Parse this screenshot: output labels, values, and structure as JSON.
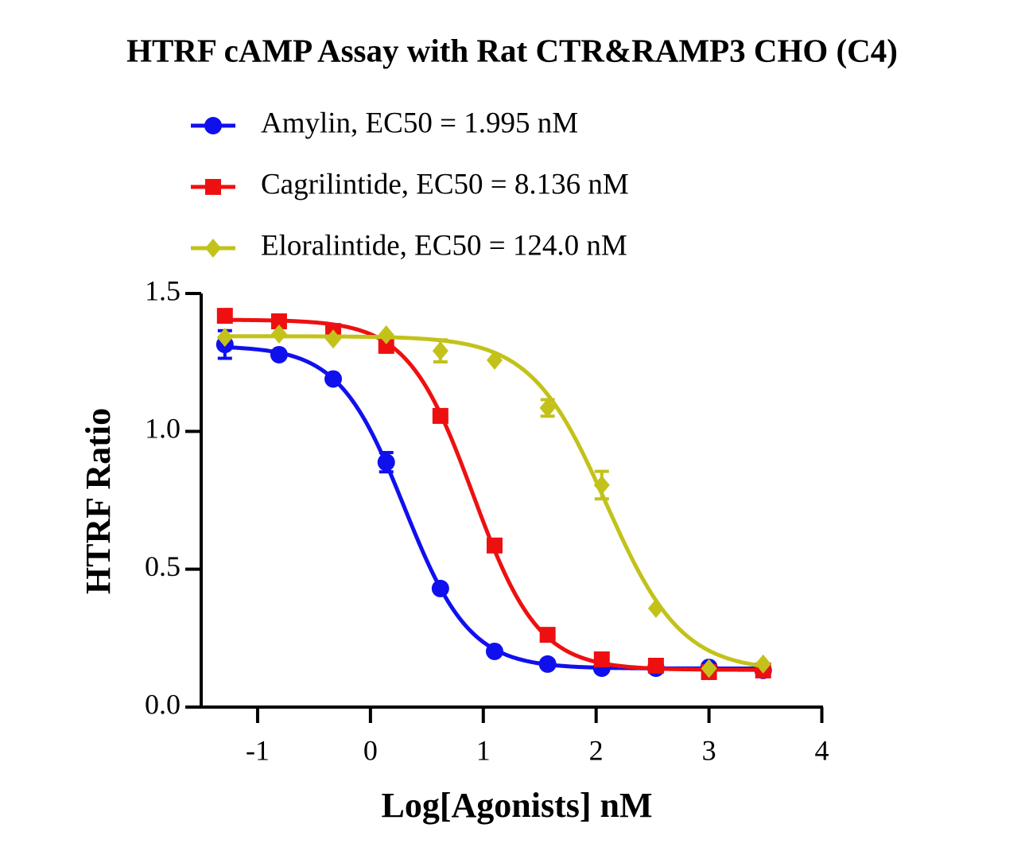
{
  "chart_data": {
    "type": "dose-response",
    "title": "HTRF cAMP Assay with Rat CTR&RAMP3 CHO (C4)",
    "x_label": "Log[Agonists] nM",
    "y_label": "HTRF Ratio",
    "xlim": [
      -1.5,
      4
    ],
    "xticks": [
      -1,
      0,
      1,
      2,
      3,
      4
    ],
    "ylim": [
      0,
      1.5
    ],
    "yticks": [
      {
        "value": 0,
        "label": "0.0"
      },
      {
        "value": 0.5,
        "label": "0.5"
      },
      {
        "value": 1,
        "label": "1.0"
      },
      {
        "value": 1.5,
        "label": "1.5"
      }
    ],
    "x": [
      -1.29,
      -0.81,
      -0.33,
      0.14,
      0.62,
      1.1,
      1.57,
      2.05,
      2.53,
      3.0,
      3.48
    ],
    "series": [
      {
        "name": "Amylin, EC50 = 1.995 nM",
        "color": "#1010ee",
        "marker": "circle",
        "values": [
          1.315,
          1.278,
          1.19,
          0.888,
          0.43,
          0.202,
          0.156,
          0.141,
          0.141,
          0.144,
          0.133
        ],
        "errors": [
          0.05,
          null,
          null,
          0.035,
          null,
          null,
          null,
          null,
          null,
          null,
          null
        ],
        "fit": {
          "top": 1.31,
          "bottom": 0.14,
          "logec50": 0.3,
          "hill": 1.5
        }
      },
      {
        "name": "Cagrilintide, EC50 = 8.136 nM",
        "color": "#ee1010",
        "marker": "square",
        "values": [
          1.419,
          1.399,
          1.364,
          1.31,
          1.056,
          0.586,
          0.262,
          0.173,
          0.15,
          0.127,
          0.133
        ],
        "errors": [
          null,
          null,
          null,
          null,
          null,
          null,
          null,
          null,
          null,
          null,
          null
        ],
        "fit": {
          "top": 1.405,
          "bottom": 0.135,
          "logec50": 0.91,
          "hill": 1.5
        }
      },
      {
        "name": "Eloralintide, EC50 = 124.0 nM",
        "color": "#c2c21a",
        "marker": "diamond",
        "values": [
          1.341,
          1.353,
          1.335,
          1.35,
          1.292,
          1.258,
          1.085,
          0.805,
          0.358,
          0.14,
          0.156
        ],
        "errors": [
          null,
          null,
          null,
          null,
          0.04,
          null,
          0.03,
          0.05,
          null,
          null,
          null
        ],
        "fit": {
          "top": 1.345,
          "bottom": 0.13,
          "logec50": 2.09,
          "hill": 1.3
        }
      }
    ]
  }
}
